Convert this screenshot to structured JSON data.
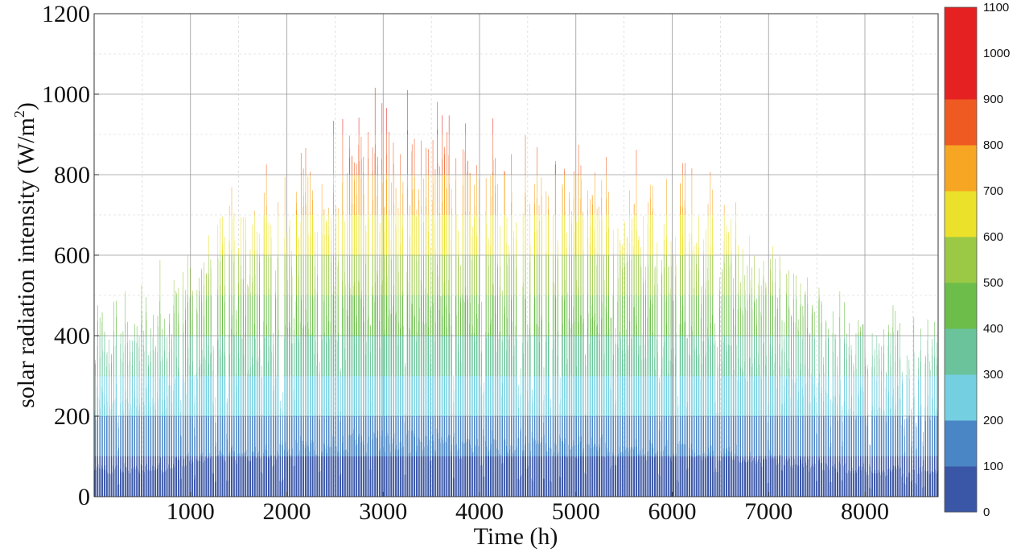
{
  "chart_data": {
    "type": "bar",
    "xlabel": "Time (h)",
    "ylabel": "solar radiation intensity (W/m",
    "ylabel_sup": "2",
    "ylabel_close": ")",
    "xlim": [
      0,
      8760
    ],
    "ylim": [
      0,
      1200
    ],
    "xticks": [
      "1000",
      "2000",
      "3000",
      "4000",
      "5000",
      "6000",
      "7000",
      "8000"
    ],
    "xtick_values": [
      1000,
      2000,
      3000,
      4000,
      5000,
      6000,
      7000,
      8000
    ],
    "yticks": [
      "0",
      "200",
      "400",
      "600",
      "800",
      "1000",
      "1200"
    ],
    "ytick_values": [
      0,
      200,
      400,
      600,
      800,
      1000,
      1200
    ],
    "grid": true,
    "colorbar": {
      "levels": [
        0,
        100,
        200,
        300,
        400,
        500,
        600,
        700,
        800,
        900,
        1000,
        1100
      ],
      "labels": [
        "0",
        "100",
        "200",
        "300",
        "400",
        "500",
        "600",
        "700",
        "800",
        "900",
        "1000",
        "1100"
      ],
      "colors": [
        "#3a56a6",
        "#4a86c5",
        "#74cfe0",
        "#6ac39a",
        "#6cbd4a",
        "#9bc845",
        "#ebe12a",
        "#f6a623",
        "#ef5a23",
        "#e52221",
        "#e52221"
      ]
    },
    "daily_peak_envelope": {
      "hour": [
        0,
        500,
        1000,
        1500,
        2000,
        2500,
        3000,
        3500,
        4000,
        4500,
        5000,
        5500,
        6000,
        6500,
        7000,
        7500,
        8000,
        8500,
        8760
      ],
      "peak_W_m2": [
        480,
        520,
        640,
        760,
        860,
        930,
        980,
        1010,
        960,
        920,
        900,
        880,
        860,
        780,
        660,
        560,
        480,
        470,
        480
      ]
    }
  }
}
